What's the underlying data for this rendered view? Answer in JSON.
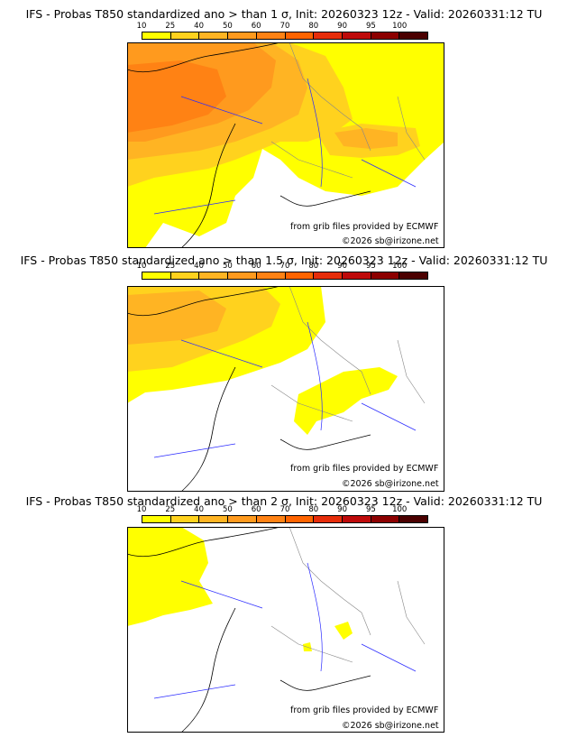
{
  "colorbar": {
    "levels": [
      "10",
      "25",
      "40",
      "50",
      "60",
      "70",
      "80",
      "90",
      "95",
      "100"
    ],
    "colors": [
      "#ffff00",
      "#ffd21e",
      "#ffb423",
      "#ff9a1e",
      "#ff8214",
      "#ff6400",
      "#e62d0a",
      "#be0a0a",
      "#8c0000",
      "#4b0000"
    ]
  },
  "panels": [
    {
      "title": "IFS - Probas T850  standardized ano > than 1 σ, Init: 20260323 12z - Valid: 20260331:12 TU",
      "credit_source": "from grib files provided by ECMWF",
      "credit_copyright": "©2026 sb@irizone.net"
    },
    {
      "title": "IFS - Probas T850  standardized ano > than 1.5 σ, Init: 20260323 12z - Valid: 20260331:12 TU",
      "credit_source": "from grib files provided by ECMWF",
      "credit_copyright": "©2026 sb@irizone.net"
    },
    {
      "title": "IFS - Probas T850  standardized ano > than 2 σ, Init: 20260323 12z - Valid: 20260331:12 TU",
      "credit_source": "from grib files provided by ECMWF",
      "credit_copyright": "©2026 sb@irizone.net"
    }
  ]
}
